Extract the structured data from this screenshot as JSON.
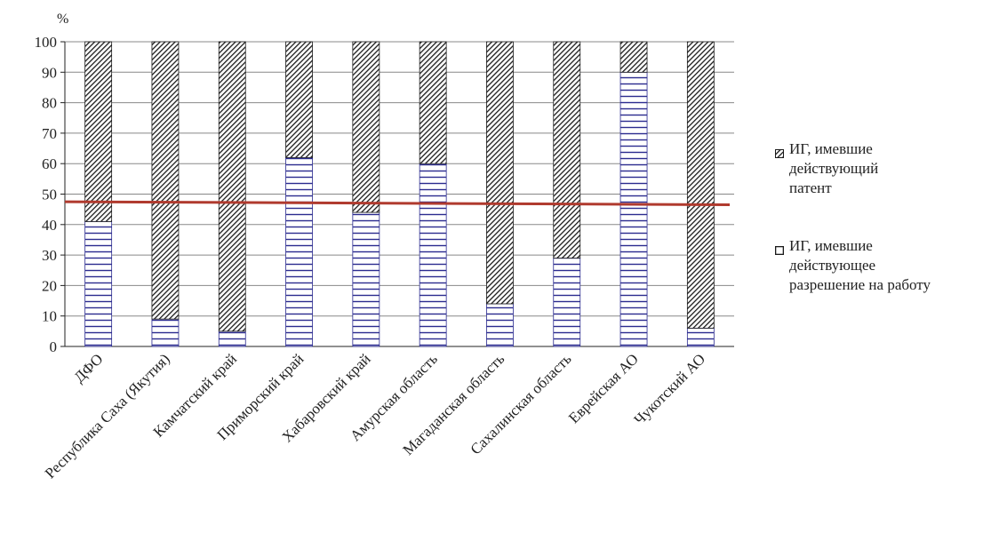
{
  "chart_data": {
    "type": "bar",
    "stacked": true,
    "y_unit_label": "%",
    "categories": [
      "ДФО",
      "Республика Саха (Якутия)",
      "Камчатский край",
      "Приморский край",
      "Хабаровский край",
      "Амурская область",
      "Магаданская область",
      "Сахалинская область",
      "Еврейская АО",
      "Чукотский АО"
    ],
    "series": [
      {
        "name": "ИГ, имевшие действующее разрешение на работу",
        "values": [
          41,
          9,
          5,
          62,
          44,
          60,
          14,
          29,
          90,
          6
        ]
      },
      {
        "name": "ИГ, имевшие действующий патент",
        "values": [
          59,
          91,
          95,
          38,
          56,
          40,
          86,
          71,
          10,
          94
        ]
      }
    ],
    "trendline": {
      "start": 47.5,
      "end": 46.5
    },
    "ylim": [
      0,
      100
    ],
    "yticks": [
      0,
      10,
      20,
      30,
      40,
      50,
      60,
      70,
      80,
      90,
      100
    ],
    "grid": true,
    "legend_position": "right",
    "colors": {
      "permit_fill": "#ffffff",
      "permit_stripes": "#2b2b8f",
      "patent_fill": "#ffffff",
      "patent_hatch": "#1a1a1a",
      "trendline": "#b03a2e",
      "grid": "#888888"
    }
  },
  "legend": {
    "patent_label": "ИГ, имевшие\nдействующий\nпатент",
    "permit_label": "ИГ, имевшие\nдействующее\nразрешение на работу"
  }
}
